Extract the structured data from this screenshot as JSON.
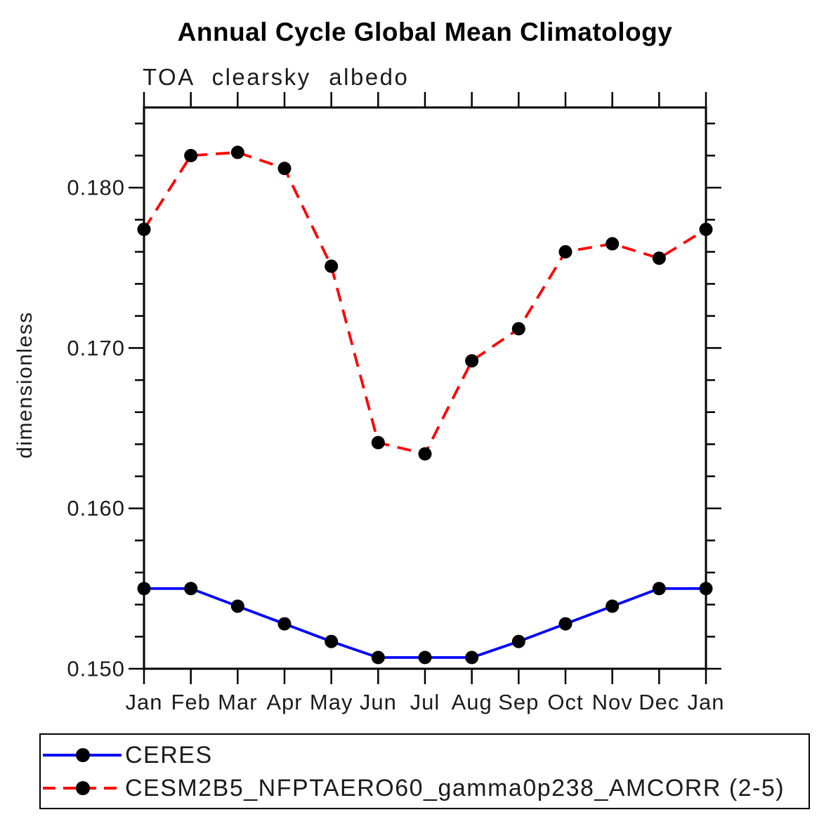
{
  "chart_data": {
    "type": "line",
    "title": "Annual Cycle Global Mean Climatology",
    "subtitle": "TOA clearsky albedo",
    "xlabel": "",
    "ylabel": "dimensionless",
    "categories": [
      "Jan",
      "Feb",
      "Mar",
      "Apr",
      "May",
      "Jun",
      "Jul",
      "Aug",
      "Sep",
      "Oct",
      "Nov",
      "Dec",
      "Jan"
    ],
    "series": [
      {
        "name": "CERES",
        "color": "#0000ff",
        "line_style": "solid",
        "marker": "filled-circle",
        "marker_color": "#000000",
        "values": [
          0.155,
          0.155,
          0.1539,
          0.1528,
          0.1517,
          0.1507,
          0.1507,
          0.1507,
          0.1517,
          0.1528,
          0.1539,
          0.155,
          0.155
        ]
      },
      {
        "name": "CESM2B5_NFPTAERO60_gamma0p238_AMCORR (2-5)",
        "color": "#ff0000",
        "line_style": "dashed",
        "marker": "filled-circle",
        "marker_color": "#000000",
        "values": [
          0.1774,
          0.182,
          0.1822,
          0.1812,
          0.1751,
          0.1641,
          0.1634,
          0.1692,
          0.1712,
          0.176,
          0.1765,
          0.1756,
          0.1774
        ]
      }
    ],
    "ylim": [
      0.15,
      0.185
    ],
    "yticks": [
      0.15,
      0.16,
      0.17,
      0.18
    ],
    "ytick_labels": [
      "0.150",
      "0.160",
      "0.170",
      "0.180"
    ],
    "yminor_step": 0.002,
    "grid": false,
    "legend_position": "bottom-box",
    "axis_color": "#000000",
    "text_color": "#1c1c1c"
  }
}
